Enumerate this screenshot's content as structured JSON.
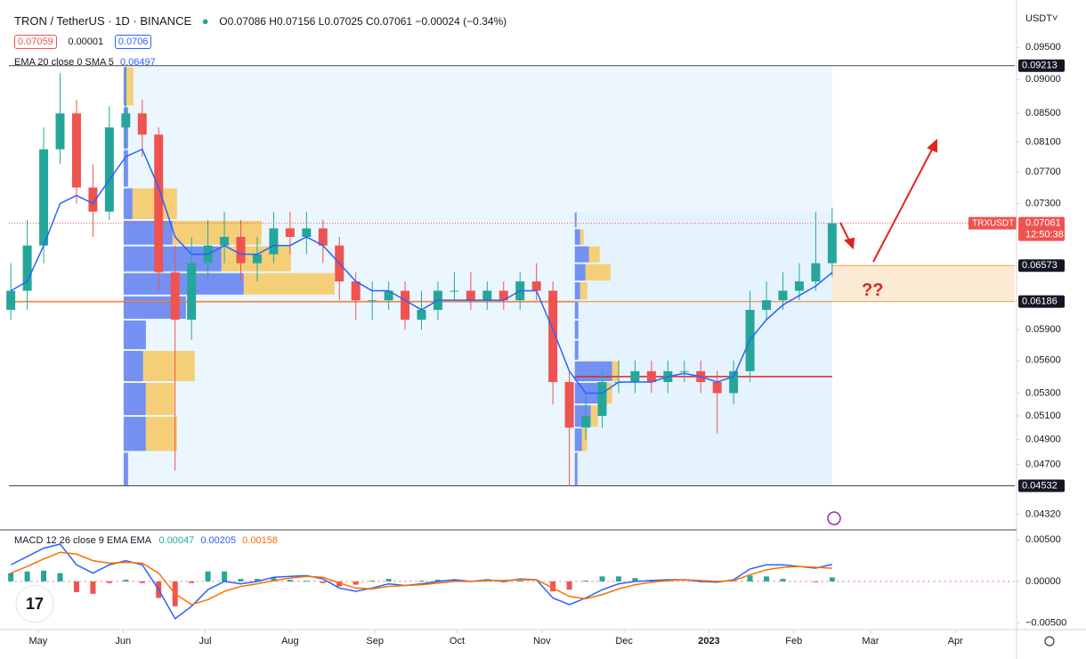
{
  "chart_data": {
    "type": "candlestick",
    "symbol": "TRON / TetherUS · 1D · BINANCE",
    "ohlc_text": "O0.07086 H0.07156 L0.07025 C0.07061 −0.00024 (−0.34%)",
    "bid": 0.07059,
    "spread": 1e-05,
    "ask": 0.0706,
    "currency": "USDT˅",
    "log_scale": true,
    "xlim": [
      -10.7,
      356.7
    ],
    "xticks": [
      {
        "value": 0,
        "label": "May"
      },
      {
        "value": 31,
        "label": "Jun"
      },
      {
        "value": 61,
        "label": "Jul"
      },
      {
        "value": 92,
        "label": "Aug"
      },
      {
        "value": 123,
        "label": "Sep"
      },
      {
        "value": 153,
        "label": "Oct"
      },
      {
        "value": 184,
        "label": "Nov"
      },
      {
        "value": 214,
        "label": "Dec"
      },
      {
        "value": 245,
        "label": "2023"
      },
      {
        "value": 276,
        "label": "Feb"
      },
      {
        "value": 304,
        "label": "Mar"
      },
      {
        "value": 335,
        "label": "Apr"
      }
    ],
    "ylim": [
      0.0422,
      0.1017
    ],
    "yticks": [
      {
        "value": 0.095,
        "label": "0.09500"
      },
      {
        "value": 0.09,
        "label": "0.09000"
      },
      {
        "value": 0.085,
        "label": "0.08500"
      },
      {
        "value": 0.081,
        "label": "0.08100"
      },
      {
        "value": 0.077,
        "label": "0.07700"
      },
      {
        "value": 0.073,
        "label": "0.07300"
      },
      {
        "value": 0.059,
        "label": "0.05900"
      },
      {
        "value": 0.056,
        "label": "0.05600"
      },
      {
        "value": 0.053,
        "label": "0.05300"
      },
      {
        "value": 0.051,
        "label": "0.05100"
      },
      {
        "value": 0.049,
        "label": "0.04900"
      },
      {
        "value": 0.047,
        "label": "0.04700"
      },
      {
        "value": 0.0432,
        "label": "0.04320"
      }
    ],
    "up_color": "#26a69a",
    "down_color": "#ef5350",
    "x": [
      -10,
      -4,
      2,
      8,
      14,
      20,
      26,
      32,
      38,
      44,
      50,
      56,
      62,
      68,
      74,
      80,
      86,
      92,
      98,
      104,
      110,
      116,
      122,
      128,
      134,
      140,
      146,
      152,
      158,
      164,
      170,
      176,
      182,
      188,
      194,
      200,
      206,
      212,
      218,
      224,
      230,
      236,
      242,
      248,
      254,
      260,
      266,
      272,
      278,
      284,
      290
    ],
    "open": [
      0.061,
      0.063,
      0.068,
      0.08,
      0.085,
      0.075,
      0.072,
      0.083,
      0.085,
      0.082,
      0.065,
      0.06,
      0.066,
      0.068,
      0.069,
      0.066,
      0.067,
      0.07,
      0.069,
      0.07,
      0.068,
      0.064,
      0.062,
      0.062,
      0.063,
      0.06,
      0.061,
      0.063,
      0.063,
      0.062,
      0.063,
      0.062,
      0.064,
      0.063,
      0.054,
      0.05,
      0.051,
      0.054,
      0.054,
      0.055,
      0.054,
      0.055,
      0.055,
      0.054,
      0.053,
      0.055,
      0.061,
      0.062,
      0.063,
      0.064,
      0.066
    ],
    "high": [
      0.066,
      0.071,
      0.083,
      0.091,
      0.087,
      0.078,
      0.086,
      0.092,
      0.087,
      0.083,
      0.068,
      0.069,
      0.071,
      0.072,
      0.071,
      0.069,
      0.072,
      0.072,
      0.072,
      0.071,
      0.069,
      0.065,
      0.064,
      0.064,
      0.064,
      0.063,
      0.064,
      0.065,
      0.065,
      0.064,
      0.064,
      0.065,
      0.066,
      0.064,
      0.055,
      0.053,
      0.055,
      0.056,
      0.056,
      0.056,
      0.056,
      0.056,
      0.056,
      0.055,
      0.056,
      0.063,
      0.064,
      0.065,
      0.066,
      0.072,
      0.0725
    ],
    "low": [
      0.06,
      0.061,
      0.066,
      0.078,
      0.073,
      0.069,
      0.071,
      0.08,
      0.079,
      0.063,
      0.0465,
      0.058,
      0.064,
      0.066,
      0.064,
      0.064,
      0.066,
      0.067,
      0.067,
      0.066,
      0.062,
      0.06,
      0.06,
      0.061,
      0.059,
      0.059,
      0.06,
      0.062,
      0.061,
      0.061,
      0.061,
      0.061,
      0.062,
      0.052,
      0.0453,
      0.049,
      0.05,
      0.053,
      0.053,
      0.053,
      0.053,
      0.054,
      0.053,
      0.0495,
      0.052,
      0.054,
      0.06,
      0.061,
      0.062,
      0.063,
      0.0645
    ],
    "close": [
      0.063,
      0.068,
      0.08,
      0.085,
      0.075,
      0.072,
      0.083,
      0.085,
      0.082,
      0.065,
      0.06,
      0.066,
      0.068,
      0.069,
      0.066,
      0.067,
      0.07,
      0.069,
      0.07,
      0.068,
      0.064,
      0.062,
      0.062,
      0.063,
      0.06,
      0.061,
      0.063,
      0.063,
      0.062,
      0.063,
      0.062,
      0.064,
      0.063,
      0.054,
      0.05,
      0.051,
      0.054,
      0.054,
      0.055,
      0.054,
      0.055,
      0.055,
      0.054,
      0.053,
      0.055,
      0.061,
      0.062,
      0.063,
      0.064,
      0.066,
      0.07061
    ],
    "ema": {
      "label": "EMA 20 close 0 SMA 5",
      "last": 0.06497,
      "color": "#2962ff",
      "values": [
        0.063,
        0.064,
        0.068,
        0.073,
        0.074,
        0.073,
        0.076,
        0.079,
        0.08,
        0.075,
        0.069,
        0.067,
        0.067,
        0.068,
        0.067,
        0.067,
        0.068,
        0.068,
        0.069,
        0.068,
        0.066,
        0.064,
        0.063,
        0.063,
        0.062,
        0.061,
        0.062,
        0.062,
        0.062,
        0.062,
        0.062,
        0.063,
        0.063,
        0.059,
        0.055,
        0.053,
        0.053,
        0.054,
        0.054,
        0.054,
        0.0545,
        0.0548,
        0.0545,
        0.054,
        0.0545,
        0.058,
        0.06,
        0.0615,
        0.0625,
        0.0635,
        0.06497
      ]
    },
    "profiles": [
      {
        "from": 31.2,
        "to": 290,
        "poc": 0.06186,
        "bins": [
          0.0453,
          0.048,
          0.051,
          0.054,
          0.057,
          0.06,
          0.0625,
          0.065,
          0.068,
          0.071,
          0.075,
          0.08,
          0.086,
          0.092
        ],
        "up": [
          5,
          25,
          25,
          22,
          25,
          70,
          135,
          110,
          55,
          10,
          5,
          5,
          3
        ],
        "down": [
          0,
          35,
          32,
          58,
          0,
          0,
          102,
          78,
          100,
          50,
          0,
          0,
          8
        ]
      },
      {
        "from": 196,
        "to": 290,
        "poc": 0.0545,
        "bins": [
          0.0453,
          0.048,
          0.05,
          0.052,
          0.054,
          0.056,
          0.058,
          0.06,
          0.062,
          0.064,
          0.066,
          0.068,
          0.07,
          0.072
        ],
        "up": [
          3,
          8,
          18,
          30,
          42,
          4,
          4,
          4,
          6,
          12,
          16,
          6,
          2
        ],
        "down": [
          0,
          6,
          8,
          12,
          8,
          0,
          0,
          0,
          8,
          28,
          12,
          4,
          0
        ]
      }
    ],
    "levels": [
      0.09213,
      0.04532
    ],
    "zone": [
      0.06186,
      0.06573
    ],
    "zone_from": 290,
    "zone_note": "??",
    "last_price": 0.07061,
    "last_symbol": "TRXUSDT",
    "countdown": "12:50:38",
    "macd": {
      "label": "MACD 12 26 close 9 EMA EMA",
      "hist_last": 0.00047,
      "macd_last": 0.00205,
      "signal_last": 0.00158,
      "ylim": [
        -0.0056,
        0.006
      ],
      "yticks": [
        {
          "value": 0.005,
          "label": "0.00500"
        },
        {
          "value": 0,
          "label": "0.00000"
        },
        {
          "value": -0.005,
          "label": "−0.00500"
        }
      ],
      "macd_color": "#2962ff",
      "signal_color": "#ff6d00",
      "macd": [
        0.002,
        0.003,
        0.004,
        0.0045,
        0.002,
        0.001,
        0.002,
        0.0025,
        0.002,
        -0.001,
        -0.0045,
        -0.003,
        -0.001,
        0.0,
        -0.0003,
        0.0,
        0.0005,
        0.0006,
        0.0007,
        0.0003,
        -0.0008,
        -0.0012,
        -0.0008,
        -0.0003,
        -0.0005,
        -0.0003,
        0.0,
        0.0002,
        0.0,
        0.0002,
        0.0,
        0.0003,
        0.0002,
        -0.002,
        -0.0028,
        -0.002,
        -0.001,
        -0.0003,
        0.0,
        0.0001,
        0.0002,
        0.0002,
        0.0,
        -0.0001,
        0.0002,
        0.0015,
        0.002,
        0.002,
        0.0018,
        0.0016,
        0.00205
      ],
      "signal": [
        0.001,
        0.0018,
        0.0027,
        0.0035,
        0.0033,
        0.0025,
        0.0022,
        0.0023,
        0.0022,
        0.001,
        -0.0015,
        -0.0028,
        -0.0022,
        -0.0012,
        -0.0006,
        -0.0003,
        0.0001,
        0.0004,
        0.0006,
        0.0005,
        -0.0002,
        -0.0008,
        -0.0009,
        -0.0006,
        -0.0005,
        -0.0004,
        -0.0002,
        0.0,
        0.0,
        0.0001,
        0.0001,
        0.0002,
        0.0002,
        -0.0008,
        -0.0018,
        -0.0021,
        -0.0016,
        -0.0009,
        -0.0004,
        -0.0001,
        0.0001,
        0.0002,
        0.0001,
        0.0,
        0.0001,
        0.0008,
        0.0014,
        0.0017,
        0.0018,
        0.0017,
        0.00158
      ],
      "hist": [
        0.001,
        0.0012,
        0.0013,
        0.001,
        -0.0013,
        -0.0015,
        -0.0002,
        0.0002,
        -0.0002,
        -0.002,
        -0.003,
        -0.0002,
        0.0012,
        0.0012,
        0.0003,
        0.0003,
        0.0004,
        0.0002,
        0.0001,
        -0.0002,
        -0.0006,
        -0.0004,
        0.0001,
        0.0003,
        0.0,
        0.0001,
        0.0002,
        0.0002,
        0.0,
        0.0001,
        -0.0001,
        0.0001,
        0.0,
        -0.0012,
        -0.001,
        0.0001,
        0.0006,
        0.0006,
        0.0004,
        0.0002,
        0.0001,
        0.0,
        -0.0001,
        -0.0001,
        0.0001,
        0.0007,
        0.0006,
        0.0003,
        0.0,
        -0.0001,
        0.00047
      ]
    }
  }
}
